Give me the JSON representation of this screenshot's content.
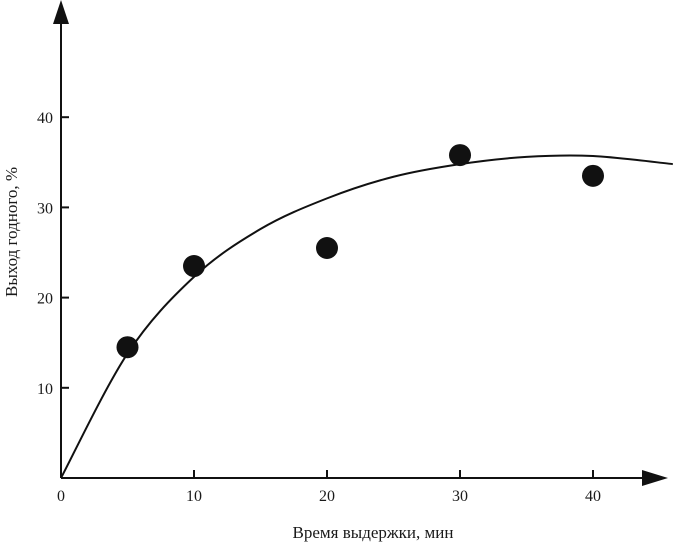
{
  "chart_data": {
    "type": "scatter",
    "title": "",
    "xlabel": "Время выдержки, мин",
    "ylabel": "Выход годного, %",
    "xlim": [
      0,
      46
    ],
    "ylim": [
      0,
      50
    ],
    "x_ticks": [
      0,
      10,
      20,
      30,
      40
    ],
    "y_ticks": [
      10,
      20,
      30,
      40
    ],
    "grid": false,
    "series": [
      {
        "kind": "points",
        "x": [
          5,
          10,
          20,
          30,
          40
        ],
        "y": [
          14.5,
          23.5,
          25.5,
          35.8,
          33.5
        ]
      },
      {
        "kind": "fitted-curve",
        "x": [
          0,
          5,
          10,
          15,
          20,
          25,
          30,
          35,
          40,
          46
        ],
        "y": [
          0,
          13.8,
          22.3,
          27.6,
          31.0,
          33.4,
          34.8,
          35.6,
          35.7,
          34.8
        ]
      }
    ],
    "colors": {
      "ink": "#111111"
    }
  }
}
